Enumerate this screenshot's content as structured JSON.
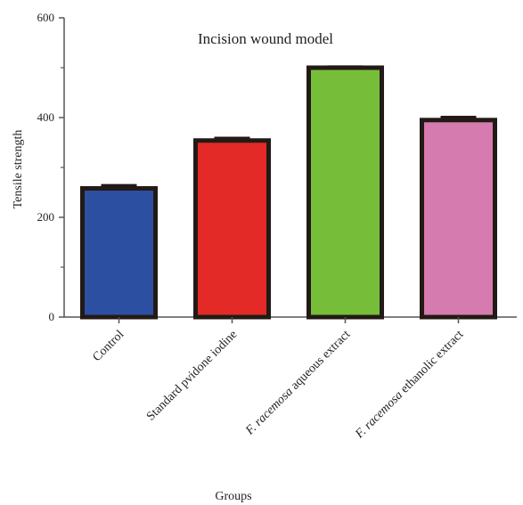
{
  "chart_data": {
    "type": "bar",
    "title": "Incision wound model",
    "xlabel": "Groups",
    "ylabel": "Tensile strength",
    "ylim": [
      0,
      600
    ],
    "yticks": [
      "0",
      "200",
      "400",
      "600"
    ],
    "grid": false,
    "categories": [
      {
        "prefix": "",
        "italic": "",
        "suffix": "Control"
      },
      {
        "prefix": "",
        "italic": "",
        "suffix": "Standard pvidone iodine"
      },
      {
        "prefix": "",
        "italic": "F. racemosa",
        "suffix": " aqueous extract"
      },
      {
        "prefix": "",
        "italic": "F. racemosa",
        "suffix": " ethanolic extract"
      }
    ],
    "values": [
      258,
      354,
      500,
      395
    ],
    "errors": [
      6,
      5,
      2,
      6
    ],
    "colors": [
      "#2c4fa1",
      "#e32a26",
      "#76bd3a",
      "#d57bb0"
    ]
  }
}
